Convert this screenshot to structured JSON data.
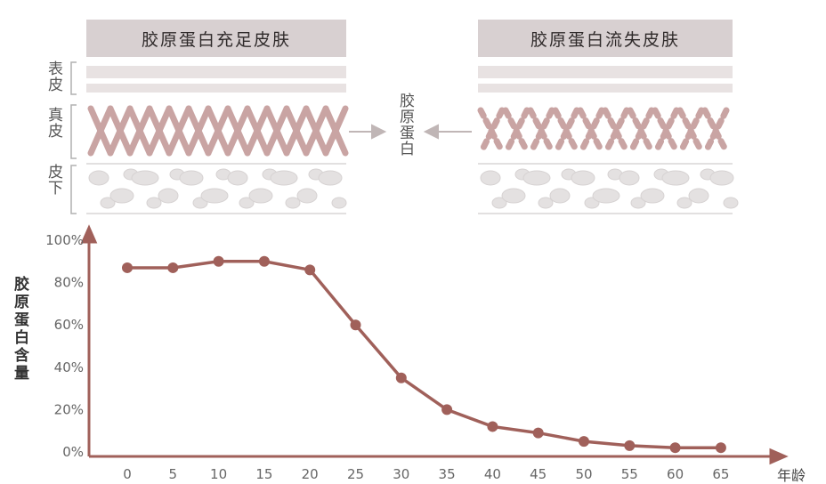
{
  "header": {
    "left_title": "胶原蛋白充足皮肤",
    "right_title": "胶原蛋白流失皮肤",
    "layers": [
      "表皮",
      "真皮",
      "皮下"
    ],
    "center_label": "胶原蛋白"
  },
  "colors": {
    "line": "#a0605a",
    "fiber": "#c9a4a3",
    "header_bg": "#d8d0d1",
    "cell": "#e6e3e3"
  },
  "chart_data": {
    "type": "line",
    "xlabel": "年龄",
    "ylabel": "胶原蛋白含量",
    "x_tick_labels": [
      "0",
      "5",
      "10",
      "15",
      "20",
      "25",
      "30",
      "35",
      "40",
      "45",
      "50",
      "55",
      "60",
      "65"
    ],
    "y_tick_labels": [
      "0%",
      "20%",
      "40%",
      "60%",
      "80%",
      "100%"
    ],
    "ylim": [
      0,
      100
    ],
    "series": [
      {
        "x": [
          0,
          5,
          10,
          15,
          20,
          25,
          30,
          35,
          40,
          45,
          50,
          55,
          60,
          65
        ],
        "values": [
          87,
          87,
          90,
          90,
          86,
          60,
          35,
          20,
          12,
          9,
          5,
          3,
          2,
          2
        ]
      }
    ]
  }
}
